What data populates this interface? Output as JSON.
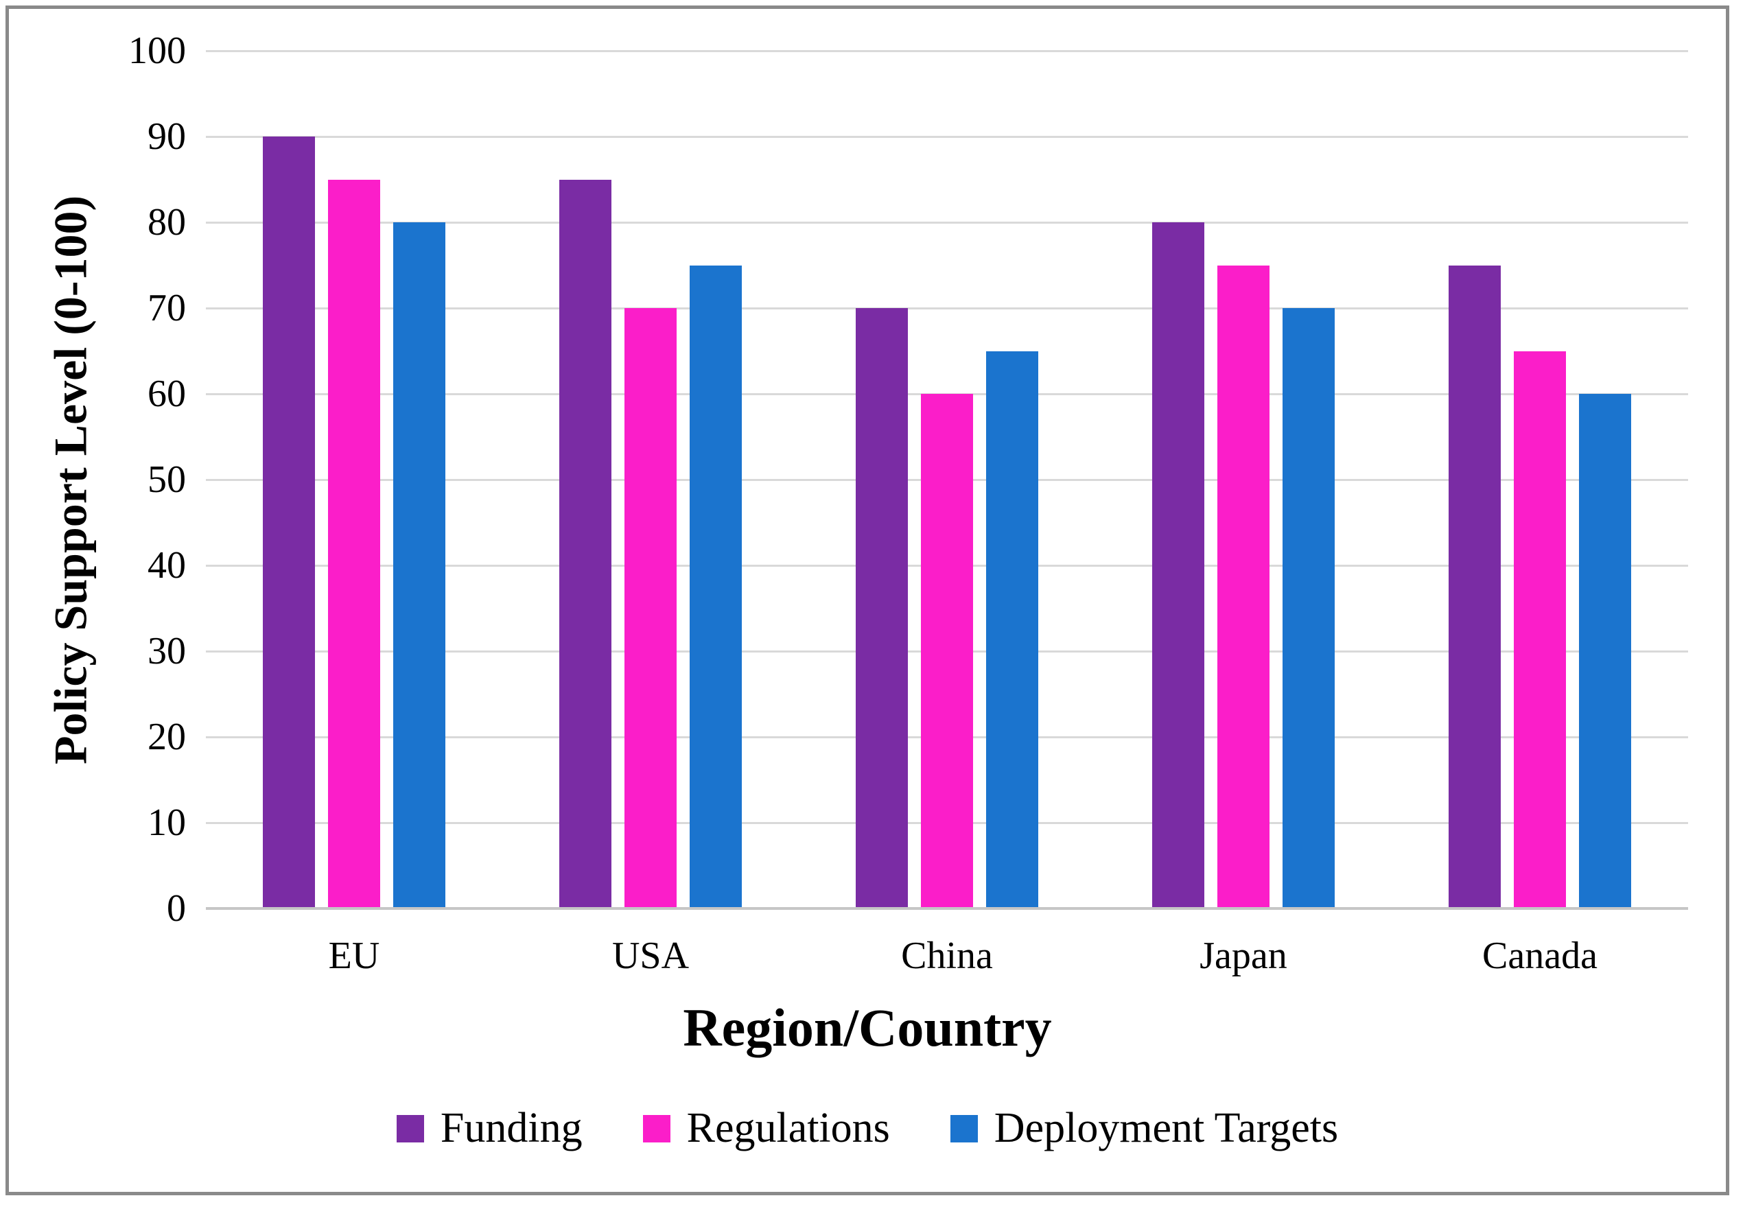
{
  "chart_data": {
    "type": "bar",
    "xlabel": "Region/Country",
    "ylabel": "Policy Support Level (0-100)",
    "categories": [
      "EU",
      "USA",
      "China",
      "Japan",
      "Canada"
    ],
    "series": [
      {
        "name": "Funding",
        "color": "#7A2CA4",
        "values": [
          90,
          85,
          70,
          80,
          75
        ]
      },
      {
        "name": "Regulations",
        "color": "#FB1EC9",
        "values": [
          85,
          70,
          60,
          75,
          65
        ]
      },
      {
        "name": "Deployment Targets",
        "color": "#1B74CE",
        "values": [
          80,
          75,
          65,
          70,
          60
        ]
      }
    ],
    "ylim": [
      0,
      100
    ],
    "yticks": [
      0,
      10,
      20,
      30,
      40,
      50,
      60,
      70,
      80,
      90,
      100
    ],
    "grid": "horizontal",
    "legend_position": "bottom",
    "colors": {
      "gridline": "#D9D9D9",
      "axis_line": "#C6C6C6",
      "frame_border": "#8A8A8A",
      "text": "#000000",
      "background": "#FFFFFF"
    }
  }
}
